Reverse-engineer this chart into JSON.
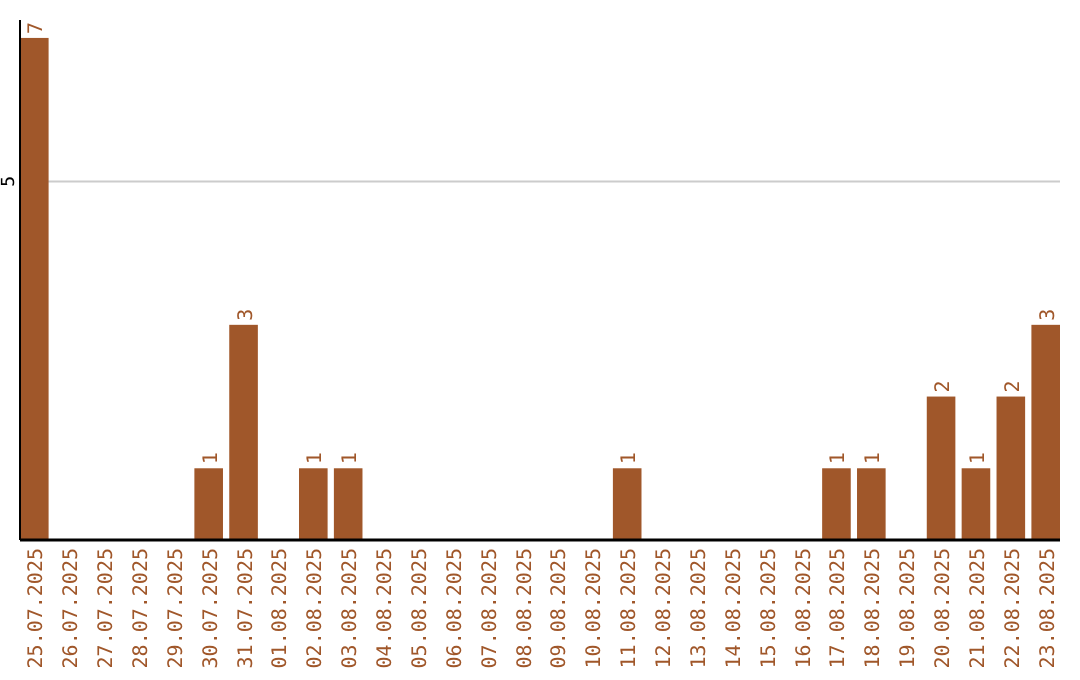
{
  "chart_data": {
    "type": "bar",
    "categories": [
      "25.07.2025",
      "26.07.2025",
      "27.07.2025",
      "28.07.2025",
      "29.07.2025",
      "30.07.2025",
      "31.07.2025",
      "01.08.2025",
      "02.08.2025",
      "03.08.2025",
      "04.08.2025",
      "05.08.2025",
      "06.08.2025",
      "07.08.2025",
      "08.08.2025",
      "09.08.2025",
      "10.08.2025",
      "11.08.2025",
      "12.08.2025",
      "13.08.2025",
      "14.08.2025",
      "15.08.2025",
      "16.08.2025",
      "17.08.2025",
      "18.08.2025",
      "19.08.2025",
      "20.08.2025",
      "21.08.2025",
      "22.08.2025",
      "23.08.2025"
    ],
    "values": [
      7,
      0,
      0,
      0,
      0,
      1,
      3,
      0,
      1,
      1,
      0,
      0,
      0,
      0,
      0,
      0,
      0,
      1,
      0,
      0,
      0,
      0,
      0,
      1,
      1,
      0,
      2,
      1,
      2,
      3
    ],
    "value_labels": [
      "7",
      null,
      null,
      null,
      null,
      "1",
      "3",
      null,
      "1",
      "1",
      null,
      null,
      null,
      null,
      null,
      null,
      null,
      "1",
      null,
      null,
      null,
      null,
      null,
      "1",
      "1",
      null,
      "2",
      "1",
      "2",
      "3"
    ],
    "color": "#a0572a",
    "ylim": [
      0,
      7.25
    ],
    "yticks": [
      5
    ],
    "grid": "y"
  }
}
